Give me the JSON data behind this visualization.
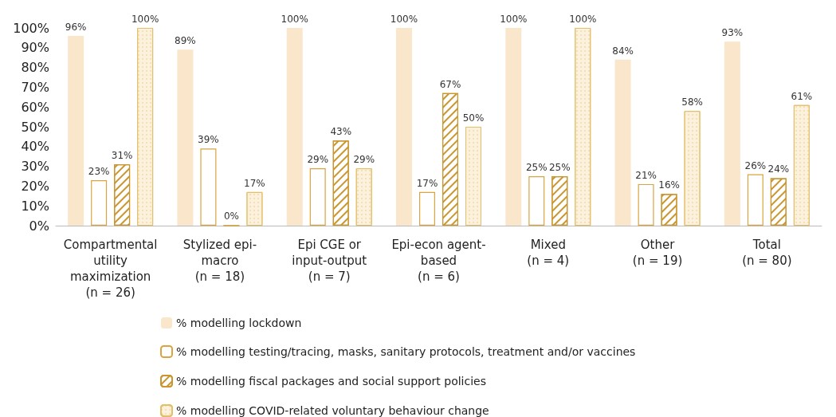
{
  "chart_data": {
    "type": "bar",
    "categories": [
      "Compartmental\nutility\nmaximization\n(n = 26)",
      "Stylized epi-\nmacro\n(n = 18)",
      "Epi CGE or\ninput-output\n(n = 7)",
      "Epi-econ agent-\nbased\n(n = 6)",
      "Mixed\n(n = 4)",
      "Other\n(n = 19)",
      "Total\n(n = 80)"
    ],
    "series": [
      {
        "name": "% modelling lockdown",
        "color": "#f9e6cb",
        "values": [
          96,
          89,
          100,
          100,
          100,
          84,
          93
        ],
        "value_labels": [
          "96%",
          "89%",
          "100%",
          "100%",
          "100%",
          "84%",
          "93%"
        ]
      },
      {
        "name": "% modelling testing/tracing, masks, sanitary protocols, treatment and/or vaccines",
        "color": "#d9a441",
        "values": [
          23,
          39,
          29,
          17,
          25,
          21,
          26
        ],
        "value_labels": [
          "23%",
          "39%",
          "29%",
          "17%",
          "25%",
          "21%",
          "26%"
        ]
      },
      {
        "name": "% modelling fiscal packages and social support policies",
        "color": "#c9962f",
        "values": [
          31,
          0,
          43,
          67,
          25,
          16,
          24
        ],
        "value_labels": [
          "31%",
          "0%",
          "43%",
          "67%",
          "25%",
          "16%",
          "24%"
        ]
      },
      {
        "name": "% modelling COVID-related voluntary behaviour change",
        "color": "#e3bf6a",
        "values": [
          100,
          17,
          29,
          50,
          100,
          58,
          61
        ],
        "value_labels": [
          "100%",
          "17%",
          "29%",
          "50%",
          "100%",
          "58%",
          "61%"
        ]
      }
    ],
    "ylim": [
      0,
      100
    ],
    "yticks": [
      {
        "value": 0,
        "label": "0%"
      },
      {
        "value": 10,
        "label": "10%"
      },
      {
        "value": 20,
        "label": "20%"
      },
      {
        "value": 30,
        "label": "30%"
      },
      {
        "value": 40,
        "label": "40%"
      },
      {
        "value": 50,
        "label": "50%"
      },
      {
        "value": 60,
        "label": "60%"
      },
      {
        "value": 70,
        "label": "70%"
      },
      {
        "value": 80,
        "label": "80%"
      },
      {
        "value": 90,
        "label": "90%"
      },
      {
        "value": 100,
        "label": "100%"
      }
    ],
    "grid": false,
    "legend": "bottom"
  }
}
